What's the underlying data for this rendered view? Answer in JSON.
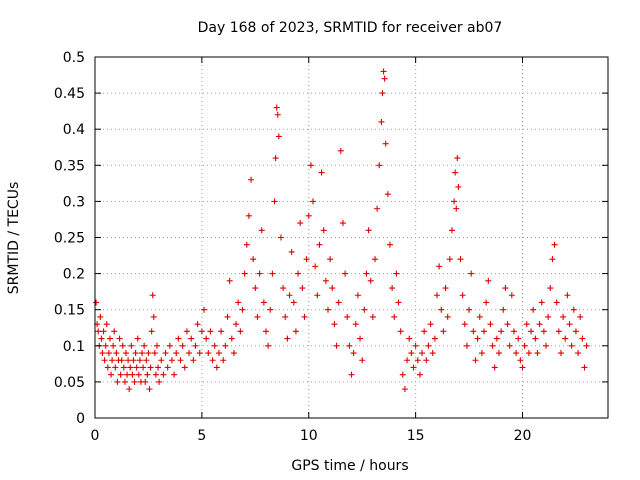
{
  "chart_data": {
    "type": "scatter",
    "title": "Day 168 of 2023, SRMTID for receiver ab07",
    "xlabel": "GPS time / hours",
    "ylabel": "SRMTID / TECUs",
    "xlim": [
      0,
      24
    ],
    "ylim": [
      0,
      0.5
    ],
    "x_ticks": [
      0,
      5,
      10,
      15,
      20
    ],
    "x_tick_labels": [
      "0",
      "5",
      "10",
      "15",
      "20"
    ],
    "y_ticks": [
      0,
      0.05,
      0.1,
      0.15,
      0.2,
      0.25,
      0.3,
      0.35,
      0.4,
      0.45,
      0.5
    ],
    "y_tick_labels": [
      "0",
      "0.05",
      "0.1",
      "0.15",
      "0.2",
      "0.25",
      "0.3",
      "0.35",
      "0.4",
      "0.45",
      "0.5"
    ],
    "grid": true,
    "marker": "plus",
    "color": "#e00000",
    "series": [
      {
        "name": "SRMTID",
        "points": [
          [
            0.05,
            0.16
          ],
          [
            0.1,
            0.13
          ],
          [
            0.15,
            0.12
          ],
          [
            0.2,
            0.1
          ],
          [
            0.25,
            0.14
          ],
          [
            0.3,
            0.11
          ],
          [
            0.35,
            0.09
          ],
          [
            0.4,
            0.12
          ],
          [
            0.45,
            0.08
          ],
          [
            0.5,
            0.1
          ],
          [
            0.55,
            0.13
          ],
          [
            0.6,
            0.07
          ],
          [
            0.65,
            0.09
          ],
          [
            0.7,
            0.11
          ],
          [
            0.75,
            0.06
          ],
          [
            0.8,
            0.08
          ],
          [
            0.85,
            0.1
          ],
          [
            0.9,
            0.12
          ],
          [
            0.95,
            0.07
          ],
          [
            1.0,
            0.09
          ],
          [
            1.05,
            0.05
          ],
          [
            1.1,
            0.08
          ],
          [
            1.15,
            0.11
          ],
          [
            1.2,
            0.06
          ],
          [
            1.25,
            0.08
          ],
          [
            1.3,
            0.1
          ],
          [
            1.35,
            0.07
          ],
          [
            1.4,
            0.05
          ],
          [
            1.45,
            0.09
          ],
          [
            1.5,
            0.06
          ],
          [
            1.55,
            0.08
          ],
          [
            1.6,
            0.04
          ],
          [
            1.65,
            0.07
          ],
          [
            1.7,
            0.1
          ],
          [
            1.75,
            0.06
          ],
          [
            1.8,
            0.08
          ],
          [
            1.85,
            0.05
          ],
          [
            1.9,
            0.09
          ],
          [
            1.95,
            0.07
          ],
          [
            2.0,
            0.11
          ],
          [
            2.05,
            0.06
          ],
          [
            2.1,
            0.08
          ],
          [
            2.15,
            0.05
          ],
          [
            2.2,
            0.09
          ],
          [
            2.25,
            0.07
          ],
          [
            2.3,
            0.1
          ],
          [
            2.35,
            0.05
          ],
          [
            2.4,
            0.08
          ],
          [
            2.45,
            0.06
          ],
          [
            2.5,
            0.09
          ],
          [
            2.55,
            0.04
          ],
          [
            2.6,
            0.07
          ],
          [
            2.65,
            0.12
          ],
          [
            2.7,
            0.17
          ],
          [
            2.75,
            0.14
          ],
          [
            2.8,
            0.09
          ],
          [
            2.85,
            0.06
          ],
          [
            2.9,
            0.1
          ],
          [
            2.95,
            0.07
          ],
          [
            3.0,
            0.05
          ],
          [
            3.1,
            0.08
          ],
          [
            3.2,
            0.06
          ],
          [
            3.3,
            0.09
          ],
          [
            3.4,
            0.07
          ],
          [
            3.5,
            0.1
          ],
          [
            3.6,
            0.08
          ],
          [
            3.7,
            0.06
          ],
          [
            3.8,
            0.09
          ],
          [
            3.9,
            0.11
          ],
          [
            4.0,
            0.08
          ],
          [
            4.1,
            0.1
          ],
          [
            4.2,
            0.07
          ],
          [
            4.3,
            0.12
          ],
          [
            4.4,
            0.09
          ],
          [
            4.5,
            0.11
          ],
          [
            4.6,
            0.08
          ],
          [
            4.7,
            0.1
          ],
          [
            4.8,
            0.13
          ],
          [
            4.9,
            0.09
          ],
          [
            5.0,
            0.12
          ],
          [
            5.1,
            0.15
          ],
          [
            5.2,
            0.11
          ],
          [
            5.3,
            0.09
          ],
          [
            5.4,
            0.12
          ],
          [
            5.5,
            0.08
          ],
          [
            5.6,
            0.1
          ],
          [
            5.7,
            0.07
          ],
          [
            5.8,
            0.09
          ],
          [
            5.9,
            0.12
          ],
          [
            6.0,
            0.08
          ],
          [
            6.1,
            0.1
          ],
          [
            6.2,
            0.14
          ],
          [
            6.3,
            0.19
          ],
          [
            6.4,
            0.11
          ],
          [
            6.5,
            0.09
          ],
          [
            6.6,
            0.13
          ],
          [
            6.7,
            0.16
          ],
          [
            6.8,
            0.12
          ],
          [
            6.9,
            0.15
          ],
          [
            7.0,
            0.2
          ],
          [
            7.1,
            0.24
          ],
          [
            7.2,
            0.28
          ],
          [
            7.3,
            0.33
          ],
          [
            7.4,
            0.22
          ],
          [
            7.5,
            0.18
          ],
          [
            7.6,
            0.14
          ],
          [
            7.7,
            0.2
          ],
          [
            7.8,
            0.26
          ],
          [
            7.9,
            0.16
          ],
          [
            8.0,
            0.12
          ],
          [
            8.1,
            0.1
          ],
          [
            8.2,
            0.15
          ],
          [
            8.3,
            0.2
          ],
          [
            8.4,
            0.3
          ],
          [
            8.45,
            0.36
          ],
          [
            8.5,
            0.43
          ],
          [
            8.55,
            0.42
          ],
          [
            8.6,
            0.39
          ],
          [
            8.7,
            0.25
          ],
          [
            8.8,
            0.18
          ],
          [
            8.9,
            0.14
          ],
          [
            9.0,
            0.11
          ],
          [
            9.1,
            0.17
          ],
          [
            9.2,
            0.23
          ],
          [
            9.3,
            0.16
          ],
          [
            9.4,
            0.12
          ],
          [
            9.5,
            0.2
          ],
          [
            9.6,
            0.27
          ],
          [
            9.7,
            0.18
          ],
          [
            9.8,
            0.14
          ],
          [
            9.9,
            0.22
          ],
          [
            10.0,
            0.28
          ],
          [
            10.1,
            0.35
          ],
          [
            10.2,
            0.3
          ],
          [
            10.3,
            0.21
          ],
          [
            10.4,
            0.17
          ],
          [
            10.5,
            0.24
          ],
          [
            10.6,
            0.34
          ],
          [
            10.7,
            0.26
          ],
          [
            10.8,
            0.19
          ],
          [
            10.9,
            0.15
          ],
          [
            11.0,
            0.22
          ],
          [
            11.1,
            0.18
          ],
          [
            11.2,
            0.13
          ],
          [
            11.3,
            0.1
          ],
          [
            11.4,
            0.16
          ],
          [
            11.5,
            0.37
          ],
          [
            11.6,
            0.27
          ],
          [
            11.7,
            0.2
          ],
          [
            11.8,
            0.14
          ],
          [
            11.9,
            0.1
          ],
          [
            12.0,
            0.06
          ],
          [
            12.1,
            0.09
          ],
          [
            12.2,
            0.13
          ],
          [
            12.3,
            0.17
          ],
          [
            12.4,
            0.11
          ],
          [
            12.5,
            0.08
          ],
          [
            12.6,
            0.15
          ],
          [
            12.7,
            0.2
          ],
          [
            12.8,
            0.26
          ],
          [
            12.9,
            0.19
          ],
          [
            13.0,
            0.14
          ],
          [
            13.1,
            0.22
          ],
          [
            13.2,
            0.29
          ],
          [
            13.3,
            0.35
          ],
          [
            13.4,
            0.41
          ],
          [
            13.45,
            0.45
          ],
          [
            13.5,
            0.48
          ],
          [
            13.55,
            0.47
          ],
          [
            13.6,
            0.38
          ],
          [
            13.7,
            0.31
          ],
          [
            13.8,
            0.24
          ],
          [
            13.9,
            0.18
          ],
          [
            14.0,
            0.14
          ],
          [
            14.1,
            0.2
          ],
          [
            14.2,
            0.16
          ],
          [
            14.3,
            0.12
          ],
          [
            14.4,
            0.06
          ],
          [
            14.5,
            0.04
          ],
          [
            14.6,
            0.08
          ],
          [
            14.7,
            0.11
          ],
          [
            14.8,
            0.09
          ],
          [
            14.9,
            0.07
          ],
          [
            15.0,
            0.1
          ],
          [
            15.1,
            0.08
          ],
          [
            15.2,
            0.06
          ],
          [
            15.3,
            0.09
          ],
          [
            15.4,
            0.12
          ],
          [
            15.5,
            0.08
          ],
          [
            15.6,
            0.1
          ],
          [
            15.7,
            0.13
          ],
          [
            15.8,
            0.09
          ],
          [
            15.9,
            0.11
          ],
          [
            16.0,
            0.17
          ],
          [
            16.1,
            0.21
          ],
          [
            16.2,
            0.15
          ],
          [
            16.3,
            0.12
          ],
          [
            16.4,
            0.18
          ],
          [
            16.5,
            0.14
          ],
          [
            16.6,
            0.22
          ],
          [
            16.7,
            0.26
          ],
          [
            16.8,
            0.3
          ],
          [
            16.85,
            0.34
          ],
          [
            16.9,
            0.29
          ],
          [
            16.95,
            0.36
          ],
          [
            17.0,
            0.32
          ],
          [
            17.1,
            0.22
          ],
          [
            17.2,
            0.17
          ],
          [
            17.3,
            0.13
          ],
          [
            17.4,
            0.1
          ],
          [
            17.5,
            0.15
          ],
          [
            17.6,
            0.2
          ],
          [
            17.7,
            0.12
          ],
          [
            17.8,
            0.08
          ],
          [
            17.9,
            0.11
          ],
          [
            18.0,
            0.14
          ],
          [
            18.1,
            0.09
          ],
          [
            18.2,
            0.12
          ],
          [
            18.3,
            0.16
          ],
          [
            18.4,
            0.19
          ],
          [
            18.5,
            0.13
          ],
          [
            18.6,
            0.1
          ],
          [
            18.7,
            0.07
          ],
          [
            18.8,
            0.11
          ],
          [
            18.9,
            0.09
          ],
          [
            19.0,
            0.12
          ],
          [
            19.1,
            0.15
          ],
          [
            19.2,
            0.18
          ],
          [
            19.3,
            0.13
          ],
          [
            19.4,
            0.1
          ],
          [
            19.5,
            0.17
          ],
          [
            19.6,
            0.12
          ],
          [
            19.7,
            0.09
          ],
          [
            19.8,
            0.11
          ],
          [
            19.9,
            0.08
          ],
          [
            20.0,
            0.07
          ],
          [
            20.1,
            0.1
          ],
          [
            20.2,
            0.13
          ],
          [
            20.3,
            0.09
          ],
          [
            20.4,
            0.12
          ],
          [
            20.5,
            0.15
          ],
          [
            20.6,
            0.11
          ],
          [
            20.7,
            0.09
          ],
          [
            20.8,
            0.13
          ],
          [
            20.9,
            0.16
          ],
          [
            21.0,
            0.12
          ],
          [
            21.1,
            0.1
          ],
          [
            21.2,
            0.14
          ],
          [
            21.3,
            0.18
          ],
          [
            21.4,
            0.22
          ],
          [
            21.5,
            0.24
          ],
          [
            21.6,
            0.16
          ],
          [
            21.7,
            0.12
          ],
          [
            21.8,
            0.09
          ],
          [
            21.9,
            0.14
          ],
          [
            22.0,
            0.11
          ],
          [
            22.1,
            0.17
          ],
          [
            22.2,
            0.13
          ],
          [
            22.3,
            0.1
          ],
          [
            22.4,
            0.15
          ],
          [
            22.5,
            0.12
          ],
          [
            22.6,
            0.09
          ],
          [
            22.7,
            0.14
          ],
          [
            22.8,
            0.11
          ],
          [
            22.9,
            0.07
          ],
          [
            23.0,
            0.1
          ]
        ]
      }
    ]
  }
}
